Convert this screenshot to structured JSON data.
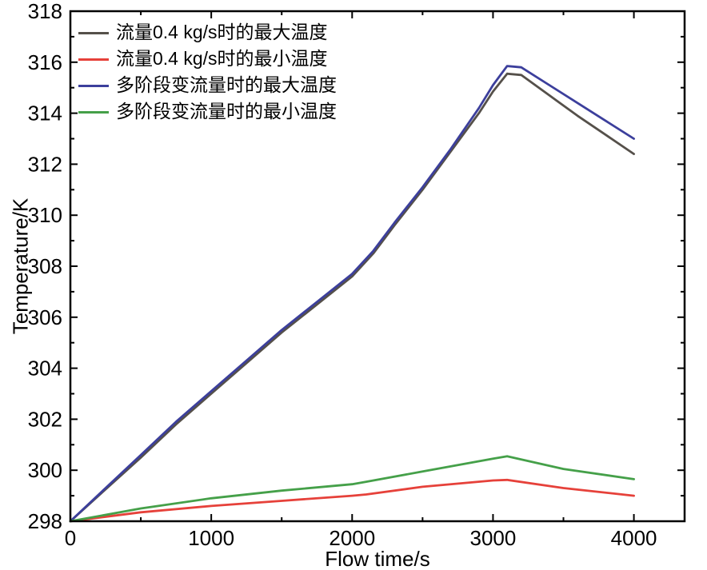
{
  "chart_data": {
    "type": "line",
    "title": "",
    "xlabel": "Flow time/s",
    "ylabel": "Temperature/K",
    "xlim": [
      0,
      4360
    ],
    "ylim": [
      298,
      318
    ],
    "x_ticks": [
      0,
      1000,
      2000,
      3000,
      4000
    ],
    "x_minor_ticks": [
      500,
      1500,
      2500,
      3500
    ],
    "y_ticks": [
      298,
      300,
      302,
      304,
      306,
      308,
      310,
      312,
      314,
      316,
      318
    ],
    "y_minor_ticks": [
      299,
      301,
      303,
      305,
      307,
      309,
      311,
      313,
      315,
      317
    ],
    "grid": false,
    "legend_position": "inside-top-left",
    "axis_color": "#000000",
    "background_color": "#ffffff",
    "series": [
      {
        "name": "流量0.4 kg/s时的最大温度",
        "color": "#55504a",
        "x": [
          0,
          250,
          500,
          750,
          1000,
          1250,
          1500,
          1750,
          2000,
          2150,
          2300,
          2500,
          2700,
          2900,
          3000,
          3100,
          3200,
          3400,
          3600,
          3800,
          4000
        ],
        "y": [
          298.0,
          299.25,
          300.5,
          301.8,
          303.0,
          304.2,
          305.4,
          306.5,
          307.6,
          308.5,
          309.6,
          311.0,
          312.5,
          314.0,
          314.85,
          315.55,
          315.5,
          314.7,
          313.9,
          313.15,
          312.4
        ]
      },
      {
        "name": "流量0.4 kg/s时的最小温度",
        "color": "#e6413a",
        "x": [
          0,
          500,
          1000,
          1500,
          2000,
          2100,
          2500,
          3000,
          3100,
          3500,
          4000
        ],
        "y": [
          298.0,
          298.35,
          298.6,
          298.8,
          299.0,
          299.05,
          299.35,
          299.6,
          299.62,
          299.3,
          299.0
        ]
      },
      {
        "name": "多阶段变流量时的最大温度",
        "color": "#3c3f9c",
        "x": [
          0,
          250,
          500,
          750,
          1000,
          1250,
          1500,
          1750,
          2000,
          2150,
          2300,
          2500,
          2700,
          2900,
          3000,
          3100,
          3200,
          3400,
          3600,
          3800,
          4000
        ],
        "y": [
          298.0,
          299.3,
          300.6,
          301.9,
          303.1,
          304.3,
          305.5,
          306.6,
          307.7,
          308.6,
          309.7,
          311.1,
          312.6,
          314.2,
          315.1,
          315.85,
          315.8,
          315.1,
          314.4,
          313.7,
          313.0
        ]
      },
      {
        "name": "多阶段变流量时的最小温度",
        "color": "#45a049",
        "x": [
          0,
          500,
          1000,
          1500,
          2000,
          2100,
          2500,
          3000,
          3100,
          3500,
          4000
        ],
        "y": [
          298.0,
          298.5,
          298.9,
          299.2,
          299.45,
          299.55,
          299.95,
          300.45,
          300.55,
          300.05,
          299.65
        ]
      }
    ]
  }
}
